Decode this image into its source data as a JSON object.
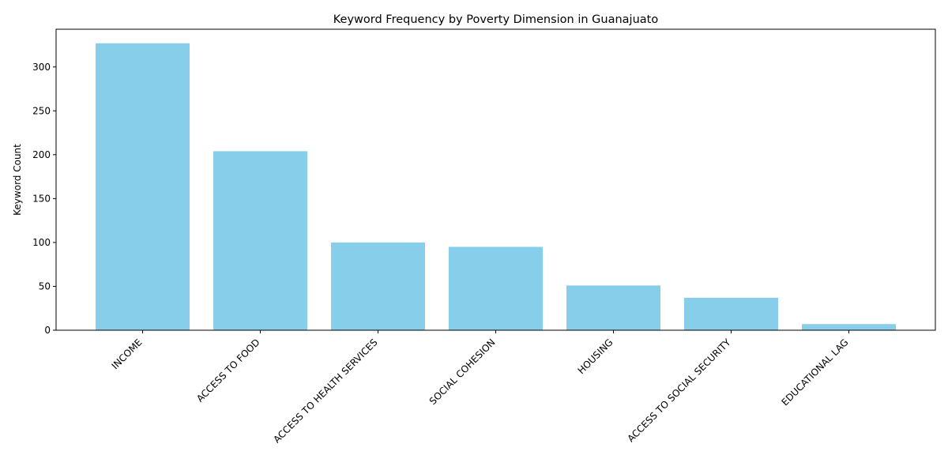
{
  "chart_data": {
    "type": "bar",
    "title": "Keyword Frequency by Poverty Dimension in Guanajuato",
    "xlabel": "",
    "ylabel": "Keyword Count",
    "categories": [
      "INCOME",
      "ACCESS TO FOOD",
      "ACCESS TO HEALTH SERVICES",
      "SOCIAL COHESION",
      "HOUSING",
      "ACCESS TO SOCIAL SECURITY",
      "EDUCATIONAL LAG"
    ],
    "values": [
      327,
      204,
      100,
      95,
      51,
      37,
      7
    ],
    "ylim": [
      0,
      343
    ],
    "yticks": [
      0,
      50,
      100,
      150,
      200,
      250,
      300
    ],
    "bar_color": "#87ceeb",
    "grid": false,
    "legend": "none"
  }
}
